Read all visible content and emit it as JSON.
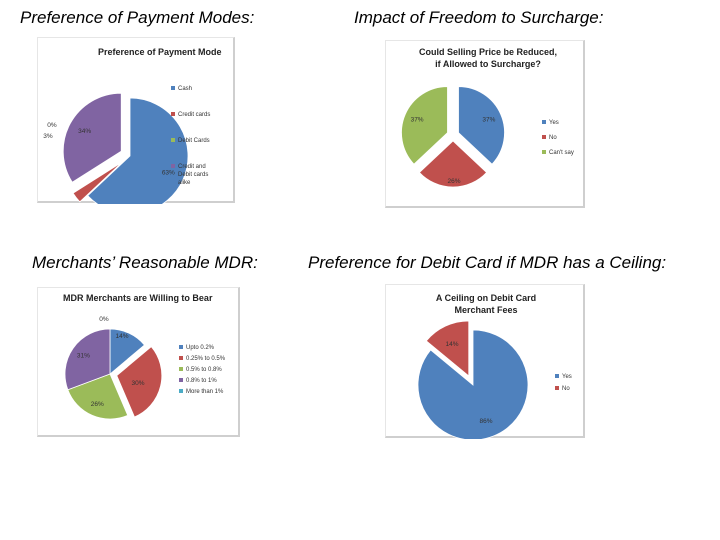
{
  "headings": {
    "payment": "Preference of Payment Modes:",
    "surcharge": "Impact of Freedom to Surcharge:",
    "mdr": "Merchants’ Reasonable MDR:",
    "debit": "Preference for Debit Card if MDR has a Ceiling:"
  },
  "chart_data": [
    {
      "type": "pie",
      "title": "Preference of Payment Mode",
      "legend_placement": "right",
      "categories": [
        "Cash",
        "Credit cards",
        "Debit Cards",
        "Credit and Debit cards alike"
      ],
      "values": [
        63,
        3,
        0,
        34
      ],
      "labels": [
        "63%",
        "3%",
        "0%",
        "34%"
      ],
      "colors": [
        "#4f81bd",
        "#c0504d",
        "#9bbb59",
        "#8064a2"
      ]
    },
    {
      "type": "pie",
      "title": "Could Selling Price be Reduced, if Allowed to Surcharge?",
      "legend_placement": "right",
      "categories": [
        "Yes",
        "No",
        "Can't say"
      ],
      "values": [
        37,
        26,
        37
      ],
      "labels": [
        "37%",
        "26%",
        "37%"
      ],
      "colors": [
        "#4f81bd",
        "#c0504d",
        "#9bbb59"
      ]
    },
    {
      "type": "pie",
      "title": "MDR Merchants are Willing to Bear",
      "legend_placement": "right",
      "categories": [
        "Upto 0.2%",
        "0.25% to 0.5%",
        "0.5% to 0.8%",
        "0.8% to 1%",
        "More than 1%"
      ],
      "values": [
        14,
        30,
        26,
        31,
        0
      ],
      "labels": [
        "14%",
        "30%",
        "26%",
        "31%",
        "0%"
      ],
      "colors": [
        "#4f81bd",
        "#c0504d",
        "#9bbb59",
        "#8064a2",
        "#4bacc6"
      ]
    },
    {
      "type": "pie",
      "title": "A Ceiling on Debit Card Merchant Fees",
      "legend_placement": "right",
      "categories": [
        "Yes",
        "No"
      ],
      "values": [
        86,
        14
      ],
      "labels": [
        "86%",
        "14%"
      ],
      "colors": [
        "#4f81bd",
        "#c0504d"
      ]
    }
  ]
}
